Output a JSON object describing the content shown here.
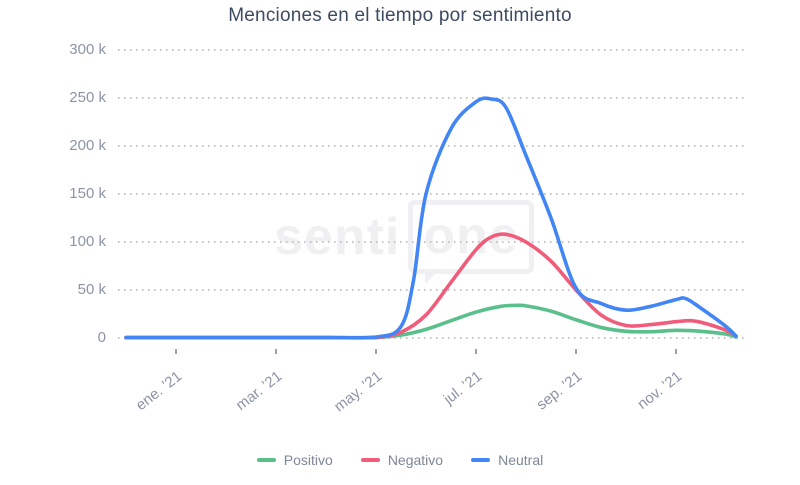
{
  "chart_data": {
    "type": "line",
    "title": "Menciones en el tiempo por sentimiento",
    "x_tick_labels": [
      "ene. ’21",
      "mar. ’21",
      "may. ’21",
      "jul. ’21",
      "sep. ’21",
      "nov. ’21"
    ],
    "y_tick_labels": [
      "300 k",
      "250 k",
      "200 k",
      "150 k",
      "100 k",
      "50 k",
      "0"
    ],
    "ylim": [
      0,
      300000
    ],
    "x_unit": "months, 0 = ene ’21 tick (data visibly starts ~1 month before first tick and ends mid-dic ’21)",
    "grid": "horizontal dotted",
    "legend_position": "bottom-center",
    "watermark": {
      "text_left": "senti",
      "text_boxed": "one"
    },
    "series": [
      {
        "name": "Positivo",
        "color": "#5bbf8b",
        "points": [
          [
            -1,
            300
          ],
          [
            0,
            300
          ],
          [
            1,
            300
          ],
          [
            2,
            300
          ],
          [
            3,
            300
          ],
          [
            4,
            500
          ],
          [
            4.5,
            3000
          ],
          [
            5,
            9000
          ],
          [
            5.5,
            18000
          ],
          [
            6,
            27000
          ],
          [
            6.5,
            33000
          ],
          [
            6.8,
            34000
          ],
          [
            7,
            33500
          ],
          [
            7.5,
            28000
          ],
          [
            8,
            19000
          ],
          [
            8.5,
            11000
          ],
          [
            9,
            7000
          ],
          [
            9.5,
            6500
          ],
          [
            10,
            8000
          ],
          [
            10.5,
            7000
          ],
          [
            11,
            4000
          ],
          [
            11.2,
            1000
          ]
        ]
      },
      {
        "name": "Negativo",
        "color": "#f05c7a",
        "points": [
          [
            -1,
            400
          ],
          [
            0,
            400
          ],
          [
            1,
            400
          ],
          [
            2,
            400
          ],
          [
            3,
            400
          ],
          [
            4,
            600
          ],
          [
            4.5,
            6000
          ],
          [
            5,
            24000
          ],
          [
            5.5,
            58000
          ],
          [
            6,
            92000
          ],
          [
            6.3,
            105000
          ],
          [
            6.6,
            108000
          ],
          [
            7,
            100000
          ],
          [
            7.5,
            80000
          ],
          [
            8,
            50000
          ],
          [
            8.5,
            24000
          ],
          [
            9,
            13000
          ],
          [
            9.5,
            14000
          ],
          [
            10,
            17000
          ],
          [
            10.3,
            18000
          ],
          [
            10.6,
            15000
          ],
          [
            11,
            8000
          ],
          [
            11.2,
            2000
          ]
        ]
      },
      {
        "name": "Neutral",
        "color": "#4286f5",
        "points": [
          [
            -1,
            600
          ],
          [
            0,
            600
          ],
          [
            1,
            600
          ],
          [
            2,
            600
          ],
          [
            3,
            600
          ],
          [
            4,
            1000
          ],
          [
            4.5,
            12000
          ],
          [
            4.75,
            60000
          ],
          [
            5,
            150000
          ],
          [
            5.5,
            218000
          ],
          [
            6,
            246000
          ],
          [
            6.3,
            249000
          ],
          [
            6.6,
            240000
          ],
          [
            7,
            190000
          ],
          [
            7.5,
            125000
          ],
          [
            8,
            52000
          ],
          [
            8.5,
            36000
          ],
          [
            9,
            29000
          ],
          [
            9.5,
            33000
          ],
          [
            10,
            40000
          ],
          [
            10.2,
            41000
          ],
          [
            10.5,
            31000
          ],
          [
            11,
            12000
          ],
          [
            11.2,
            2000
          ]
        ]
      }
    ]
  },
  "colors": {
    "title": "#3c4b62",
    "axis_labels": "#8c94a6",
    "grid_dots": "#c3c3c3",
    "legend_text": "#7d8797",
    "watermark": "#f0f0f3",
    "background": "#ffffff"
  }
}
